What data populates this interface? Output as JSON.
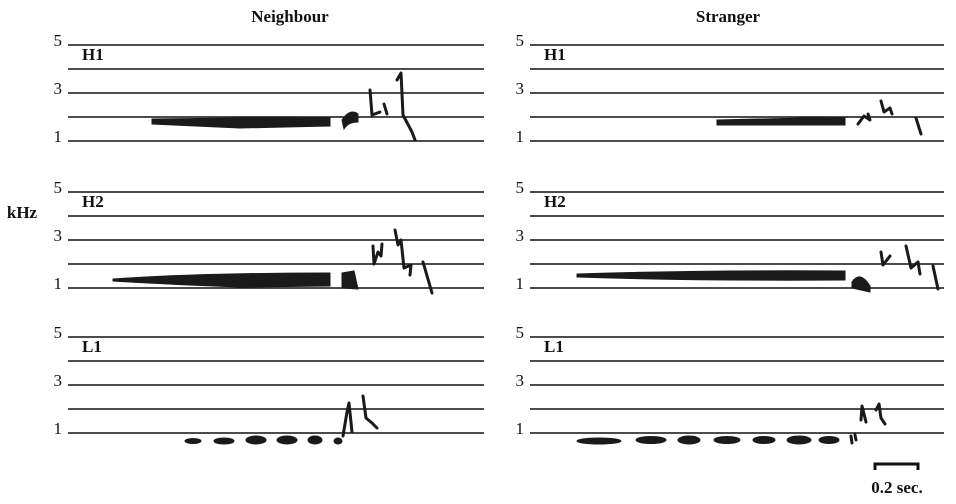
{
  "columns": [
    {
      "title": "Neighbour"
    },
    {
      "title": "Stranger"
    }
  ],
  "rows": [
    {
      "label": "H1"
    },
    {
      "label": "H2"
    },
    {
      "label": "L1"
    }
  ],
  "y_axis": {
    "label": "kHz",
    "ticks": [
      "5",
      "3",
      "1"
    ]
  },
  "scale_bar": {
    "label": "0.2 sec."
  }
}
